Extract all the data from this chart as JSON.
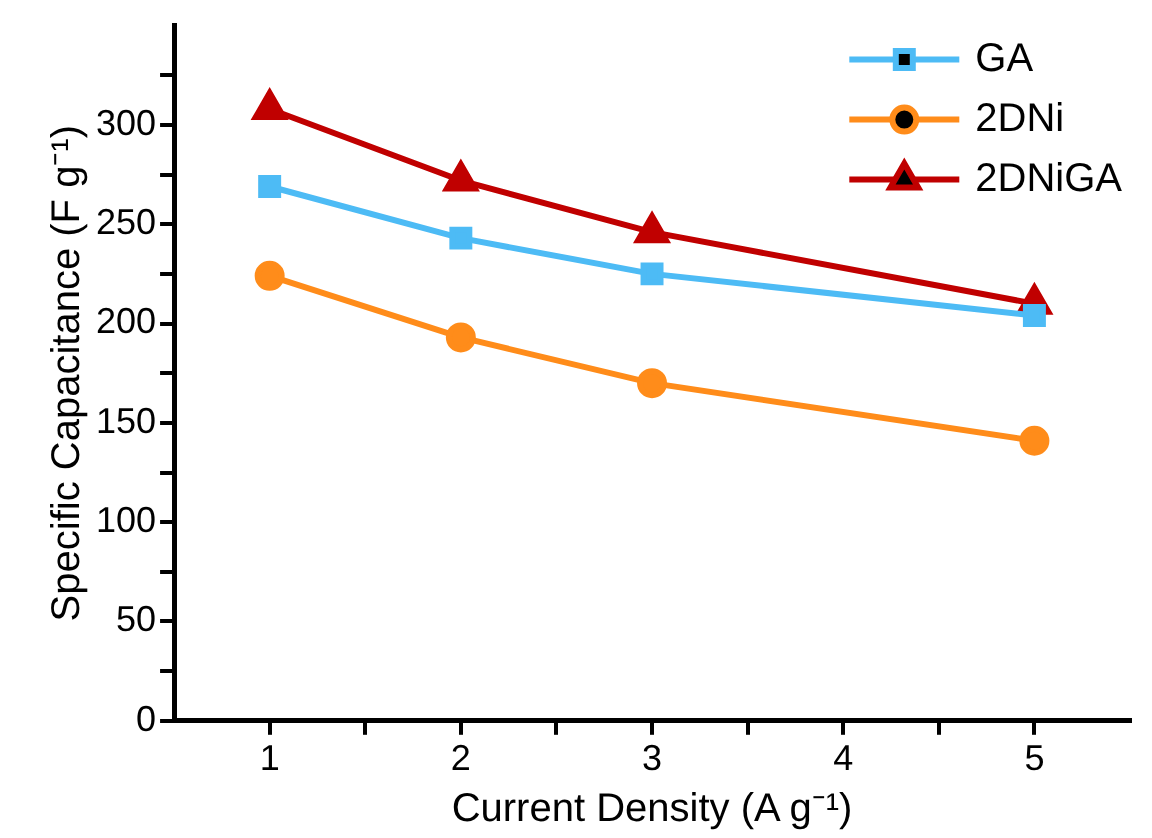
{
  "chart_data": {
    "type": "line",
    "xlabel": "Current Density (A g⁻¹)",
    "ylabel": "Specific Capacitance (F g⁻¹)",
    "x": [
      1,
      2,
      3,
      5
    ],
    "series": [
      {
        "name": "GA",
        "color": "#4dbbf5",
        "marker": "square",
        "values": [
          269,
          243,
          225,
          204
        ]
      },
      {
        "name": "2DNi",
        "color": "#ff8c1a",
        "marker": "circle",
        "values": [
          224,
          193,
          170,
          141
        ]
      },
      {
        "name": "2DNiGA",
        "color": "#c00000",
        "marker": "triangle",
        "values": [
          308,
          272,
          246,
          210
        ]
      }
    ],
    "xlim": [
      0.5,
      5.5
    ],
    "xticks": [
      1,
      {
        "value": 1.5,
        "label": null
      },
      2,
      {
        "value": 2.5,
        "label": null
      },
      3,
      {
        "value": 3.5,
        "label": null
      },
      4,
      {
        "value": 4.5,
        "label": null
      },
      5
    ],
    "ylim": [
      0,
      350
    ],
    "yticks": [
      0,
      {
        "value": 25,
        "label": null
      },
      50,
      {
        "value": 75,
        "label": null
      },
      100,
      {
        "value": 125,
        "label": null
      },
      150,
      {
        "value": 175,
        "label": null
      },
      200,
      {
        "value": 225,
        "label": null
      },
      250,
      {
        "value": 275,
        "label": null
      },
      300,
      {
        "value": 325,
        "label": null
      }
    ],
    "grid": false,
    "legend": "top right"
  }
}
